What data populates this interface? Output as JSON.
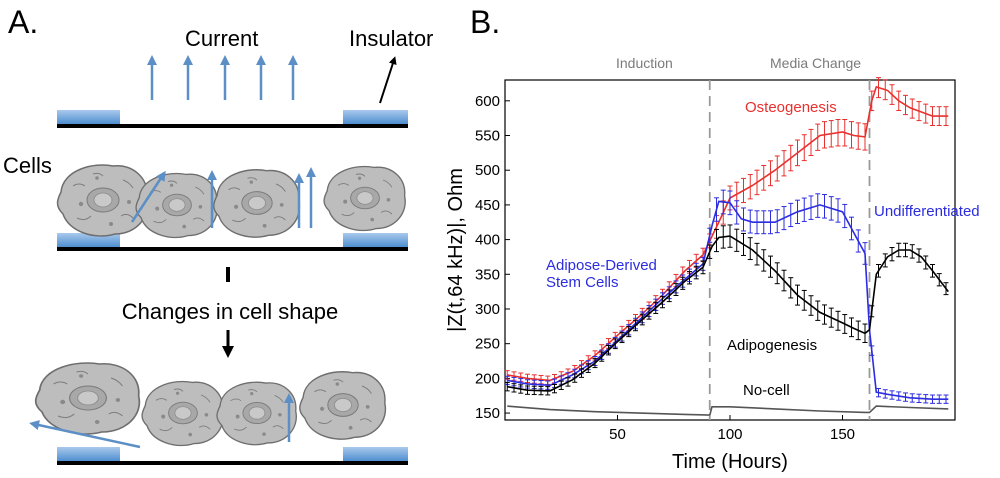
{
  "panel_a": {
    "label": "A.",
    "current_label": "Current",
    "insulator_label": "Insulator",
    "cells_label": "Cells",
    "shape_change_label": "Changes in cell shape",
    "colors": {
      "electrode": "#5b9bd5",
      "arrow": "#5b8fc5",
      "substrate": "#000000",
      "cell_fill": "#bdbdbd",
      "cell_stroke": "#707070"
    }
  },
  "panel_b": {
    "label": "B."
  },
  "chart_data": {
    "type": "line",
    "title": "",
    "xlabel": "Time (Hours)",
    "ylabel": "|Z(t,64 kHz)|, Ohm",
    "xlim": [
      0,
      200
    ],
    "ylim": [
      140,
      630
    ],
    "xticks": [
      50,
      100,
      150
    ],
    "yticks": [
      150,
      200,
      250,
      300,
      350,
      400,
      450,
      500,
      550,
      600
    ],
    "vlines": [
      {
        "x": 91,
        "label": "Induction"
      },
      {
        "x": 162,
        "label": "Media Change"
      }
    ],
    "annotations": [
      {
        "text": "Osteogenesis",
        "color": "#e8302e",
        "series": "Osteogenesis"
      },
      {
        "text": "Undifferentiated",
        "color": "#2c2ce0",
        "series": "Undifferentiated"
      },
      {
        "text": "Adipose-Derived",
        "color": "#2c2ce0",
        "series": "Undifferentiated"
      },
      {
        "text": "Stem Cells",
        "color": "#2c2ce0",
        "series": "Undifferentiated"
      },
      {
        "text": "Adipogenesis",
        "color": "#000000",
        "series": "Adipogenesis"
      },
      {
        "text": "No-cell",
        "color": "#000000",
        "series": "No-cell"
      }
    ],
    "series": [
      {
        "name": "Osteogenesis",
        "color": "#e8302e",
        "x": [
          1,
          10,
          20,
          30,
          40,
          50,
          60,
          70,
          80,
          88,
          95,
          100,
          110,
          120,
          130,
          140,
          150,
          155,
          160,
          163,
          165,
          170,
          175,
          180,
          190,
          197
        ],
        "y": [
          205,
          200,
          197,
          210,
          233,
          262,
          290,
          320,
          355,
          378,
          425,
          460,
          478,
          500,
          525,
          550,
          555,
          550,
          548,
          600,
          620,
          615,
          600,
          590,
          578,
          578
        ]
      },
      {
        "name": "Undifferentiated",
        "color": "#2c2ce0",
        "x": [
          1,
          10,
          20,
          30,
          40,
          50,
          60,
          70,
          80,
          88,
          92,
          95,
          100,
          105,
          110,
          120,
          130,
          140,
          150,
          155,
          160,
          162,
          165,
          170,
          180,
          190,
          197
        ],
        "y": [
          197,
          192,
          190,
          205,
          225,
          255,
          285,
          315,
          343,
          365,
          420,
          455,
          453,
          430,
          425,
          425,
          440,
          450,
          440,
          410,
          380,
          270,
          180,
          177,
          172,
          170,
          170
        ]
      },
      {
        "name": "Adipogenesis",
        "color": "#000000",
        "x": [
          1,
          10,
          20,
          30,
          40,
          50,
          60,
          70,
          80,
          88,
          92,
          95,
          100,
          110,
          120,
          130,
          140,
          150,
          155,
          160,
          162,
          165,
          170,
          175,
          180,
          185,
          190,
          197
        ],
        "y": [
          188,
          183,
          182,
          198,
          222,
          253,
          282,
          310,
          340,
          360,
          390,
          403,
          405,
          385,
          355,
          320,
          295,
          280,
          272,
          265,
          270,
          350,
          375,
          385,
          385,
          375,
          355,
          325
        ]
      },
      {
        "name": "No-cell",
        "color": "#555555",
        "x": [
          1,
          20,
          40,
          60,
          80,
          91,
          92,
          100,
          120,
          140,
          160,
          162,
          165,
          180,
          197
        ],
        "y": [
          160,
          155,
          152,
          150,
          148,
          147,
          159,
          159,
          156,
          153,
          151,
          151,
          160,
          158,
          156
        ]
      }
    ]
  }
}
